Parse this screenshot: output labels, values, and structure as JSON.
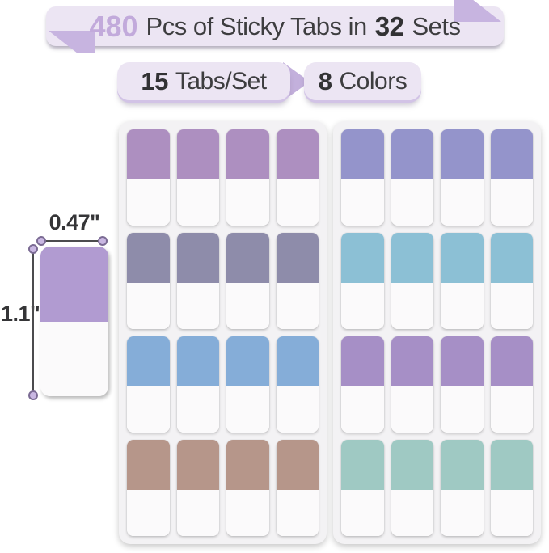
{
  "banner": {
    "count": "480",
    "middle": "Pcs of Sticky Tabs in",
    "sets_count": "32",
    "sets_word": "Sets"
  },
  "badges": {
    "per_set": {
      "number": "15",
      "label": "Tabs/Set"
    },
    "colors": {
      "number": "8",
      "label": "Colors"
    }
  },
  "size_diagram": {
    "width_label": "0.47\"",
    "height_label": "1.1\"",
    "tab_color": "#b19bd1"
  },
  "theme_colors": {
    "banner_bg": "#ece5f3",
    "ribbon_fold": "#c7b4e0",
    "count_text": "#c2aadb",
    "dark_text": "#3a3a3c",
    "sheet_bg": "#f3f2f4"
  },
  "sheets": [
    {
      "id": "left",
      "columns": 4,
      "rows": [
        {
          "color_name": "mauve-purple",
          "hex": "#ad8fc0"
        },
        {
          "color_name": "slate-lavender",
          "hex": "#8e8caa"
        },
        {
          "color_name": "steel-blue",
          "hex": "#85add8"
        },
        {
          "color_name": "taupe-brown",
          "hex": "#b6968a"
        }
      ]
    },
    {
      "id": "right",
      "columns": 4,
      "rows": [
        {
          "color_name": "periwinkle",
          "hex": "#9494cb"
        },
        {
          "color_name": "sky-blue",
          "hex": "#8cc0d5"
        },
        {
          "color_name": "light-purple",
          "hex": "#a68fc6"
        },
        {
          "color_name": "seafoam-teal",
          "hex": "#9fc9c3"
        }
      ]
    }
  ]
}
